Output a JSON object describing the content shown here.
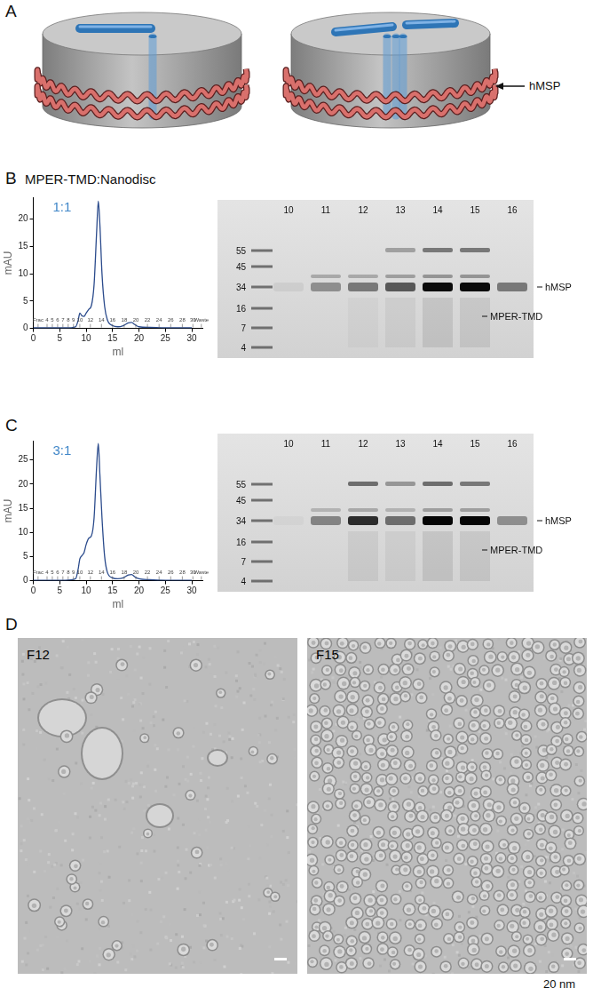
{
  "figure": {
    "panel_labels": [
      "A",
      "B",
      "C",
      "D"
    ],
    "diagram": {
      "label": "hMSP"
    },
    "panel_B_title": "MPER-TMD:Nanodisc",
    "gels": [
      {
        "lanes": [
          "10",
          "11",
          "12",
          "13",
          "14",
          "15",
          "16"
        ],
        "markers": [
          55,
          45,
          34,
          16,
          7,
          4
        ],
        "band_labels": [
          "hMSP",
          "MPER-TMD"
        ]
      },
      {
        "lanes": [
          "10",
          "11",
          "12",
          "13",
          "14",
          "15",
          "16"
        ],
        "markers": [
          55,
          45,
          34,
          16,
          7,
          4
        ],
        "band_labels": [
          "hMSP",
          "MPER-TMD"
        ]
      }
    ],
    "micrographs": [
      {
        "label": "F12"
      },
      {
        "label": "F15"
      }
    ],
    "scale_bar": "20 nm"
  },
  "chart_data": [
    {
      "type": "line",
      "title": "1:1",
      "x_label": "ml",
      "y_label": "mAU",
      "color": "#2b4b8c",
      "x": [
        0,
        2,
        4,
        6,
        8,
        8.5,
        8.8,
        9.2,
        9.6,
        10,
        10.5,
        11,
        11.5,
        12,
        12.3,
        12.6,
        13,
        13.5,
        14,
        15,
        16,
        17,
        18,
        18.6,
        19.2,
        20,
        22,
        25,
        28,
        30
      ],
      "values": [
        0.1,
        0.1,
        0.1,
        0.1,
        0.3,
        1.5,
        2.8,
        2.3,
        2.2,
        2.8,
        3.5,
        4.2,
        8,
        18,
        23.3,
        19,
        10,
        4,
        1.6,
        0.5,
        0.3,
        0.5,
        1,
        1.1,
        0.7,
        0.3,
        0.2,
        0.1,
        0.1,
        0.1
      ],
      "xlim": [
        0,
        32
      ],
      "xticks": [
        0,
        5,
        10,
        15,
        20,
        25,
        30
      ],
      "ylim": [
        0,
        24
      ],
      "yticks": [
        0,
        5,
        10,
        15,
        20
      ],
      "grid": false,
      "annotations": [
        {
          "x": 0.9,
          "label": "Frac"
        },
        {
          "x": 2.6,
          "label": "4"
        },
        {
          "x": 3.6,
          "label": "5"
        },
        {
          "x": 4.6,
          "label": "6"
        },
        {
          "x": 5.6,
          "label": "7"
        },
        {
          "x": 6.6,
          "label": "8"
        },
        {
          "x": 7.6,
          "label": "9"
        },
        {
          "x": 8.8,
          "label": "10"
        },
        {
          "x": 10.8,
          "label": "12"
        },
        {
          "x": 12.9,
          "label": "14"
        },
        {
          "x": 15,
          "label": "16"
        },
        {
          "x": 17.2,
          "label": "18"
        },
        {
          "x": 19.4,
          "label": "20"
        },
        {
          "x": 21.6,
          "label": "22"
        },
        {
          "x": 23.8,
          "label": "24"
        },
        {
          "x": 26,
          "label": "26"
        },
        {
          "x": 28.2,
          "label": "28"
        },
        {
          "x": 30.2,
          "label": "30"
        },
        {
          "x": 31.8,
          "label": "Waste"
        }
      ]
    },
    {
      "type": "line",
      "title": "3:1",
      "x_label": "ml",
      "y_label": "mAU",
      "color": "#2b4b8c",
      "x": [
        0,
        2,
        4,
        6,
        8,
        8.5,
        8.8,
        9.2,
        9.6,
        10,
        10.5,
        11,
        11.5,
        12,
        12.3,
        12.6,
        13,
        13.5,
        14,
        15,
        16,
        17,
        18,
        18.6,
        19.2,
        20,
        22,
        25,
        28,
        30
      ],
      "values": [
        0.1,
        0.1,
        0.1,
        0.1,
        0.4,
        2.5,
        4.5,
        5.2,
        5.8,
        7.5,
        8.8,
        9.3,
        13,
        24,
        28.4,
        22,
        13,
        5,
        1.8,
        0.6,
        0.4,
        0.6,
        1.2,
        1.3,
        0.8,
        0.4,
        0.2,
        0.1,
        0.1,
        0.1
      ],
      "xlim": [
        0,
        32
      ],
      "xticks": [
        0,
        5,
        10,
        15,
        20,
        25,
        30
      ],
      "ylim": [
        0,
        29
      ],
      "yticks": [
        0,
        5,
        10,
        15,
        20,
        25
      ],
      "grid": false,
      "annotations": [
        {
          "x": 0.9,
          "label": "Frac"
        },
        {
          "x": 2.6,
          "label": "4"
        },
        {
          "x": 3.6,
          "label": "5"
        },
        {
          "x": 4.6,
          "label": "6"
        },
        {
          "x": 5.6,
          "label": "7"
        },
        {
          "x": 6.6,
          "label": "8"
        },
        {
          "x": 7.6,
          "label": "9"
        },
        {
          "x": 8.8,
          "label": "10"
        },
        {
          "x": 10.8,
          "label": "12"
        },
        {
          "x": 12.9,
          "label": "14"
        },
        {
          "x": 15,
          "label": "16"
        },
        {
          "x": 17.2,
          "label": "18"
        },
        {
          "x": 19.4,
          "label": "20"
        },
        {
          "x": 21.6,
          "label": "22"
        },
        {
          "x": 23.8,
          "label": "24"
        },
        {
          "x": 26,
          "label": "26"
        },
        {
          "x": 28.2,
          "label": "28"
        },
        {
          "x": 30.2,
          "label": "30"
        },
        {
          "x": 31.8,
          "label": "Waste"
        }
      ]
    }
  ]
}
